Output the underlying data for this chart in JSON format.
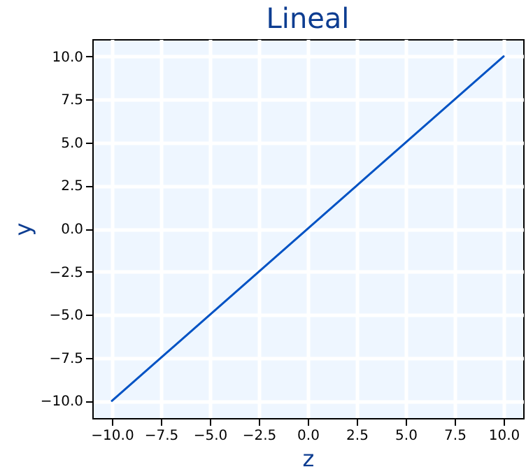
{
  "chart_data": {
    "type": "line",
    "title": "Lineal",
    "xlabel": "z",
    "ylabel": "y",
    "x": [
      -10,
      10
    ],
    "series": [
      {
        "color": "#0052c4",
        "values": [
          -10,
          10
        ]
      }
    ],
    "xlim": [
      -11,
      11
    ],
    "ylim": [
      -11,
      11
    ],
    "xticks": [
      {
        "value": -10,
        "label": "−10.0"
      },
      {
        "value": -7.5,
        "label": "−7.5"
      },
      {
        "value": -5,
        "label": "−5.0"
      },
      {
        "value": -2.5,
        "label": "−2.5"
      },
      {
        "value": 0,
        "label": "0.0"
      },
      {
        "value": 2.5,
        "label": "2.5"
      },
      {
        "value": 5,
        "label": "5.0"
      },
      {
        "value": 7.5,
        "label": "7.5"
      },
      {
        "value": 10,
        "label": "10.0"
      }
    ],
    "yticks": [
      {
        "value": -10,
        "label": "−10.0"
      },
      {
        "value": -7.5,
        "label": "−7.5"
      },
      {
        "value": -5,
        "label": "−5.0"
      },
      {
        "value": -2.5,
        "label": "−2.5"
      },
      {
        "value": 0,
        "label": "0.0"
      },
      {
        "value": 2.5,
        "label": "2.5"
      },
      {
        "value": 5,
        "label": "5.0"
      },
      {
        "value": 7.5,
        "label": "7.5"
      },
      {
        "value": 10,
        "label": "10.0"
      }
    ],
    "grid": true,
    "marker": "none",
    "line_style": "solid"
  }
}
